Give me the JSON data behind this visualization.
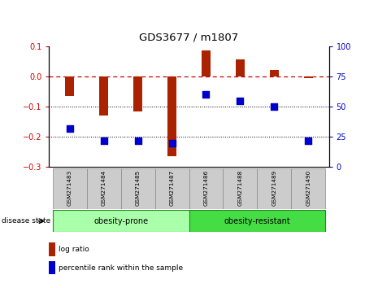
{
  "title": "GDS3677 / m1807",
  "samples": [
    "GSM271483",
    "GSM271484",
    "GSM271485",
    "GSM271487",
    "GSM271486",
    "GSM271488",
    "GSM271489",
    "GSM271490"
  ],
  "log_ratio": [
    -0.065,
    -0.13,
    -0.115,
    -0.265,
    0.085,
    0.055,
    0.02,
    -0.005
  ],
  "percentile_rank": [
    32,
    22,
    22,
    20,
    60,
    55,
    50,
    22
  ],
  "groups": [
    {
      "name": "obesity-prone",
      "start": 0,
      "end": 4,
      "color": "#aaffaa"
    },
    {
      "name": "obesity-resistant",
      "start": 4,
      "end": 8,
      "color": "#44dd44"
    }
  ],
  "bar_color": "#aa2200",
  "dot_color": "#0000cc",
  "ylim_left": [
    -0.3,
    0.1
  ],
  "ylim_right": [
    0,
    100
  ],
  "yticks_left": [
    -0.3,
    -0.2,
    -0.1,
    0.0,
    0.1
  ],
  "yticks_right": [
    0,
    25,
    50,
    75,
    100
  ],
  "zero_line_color": "#cc0000",
  "dotted_line_color": "#000000",
  "background_color": "#ffffff",
  "disease_state_label": "disease state",
  "legend_log_ratio": "log ratio",
  "legend_percentile": "percentile rank within the sample",
  "bar_width": 0.25,
  "dot_size": 28
}
